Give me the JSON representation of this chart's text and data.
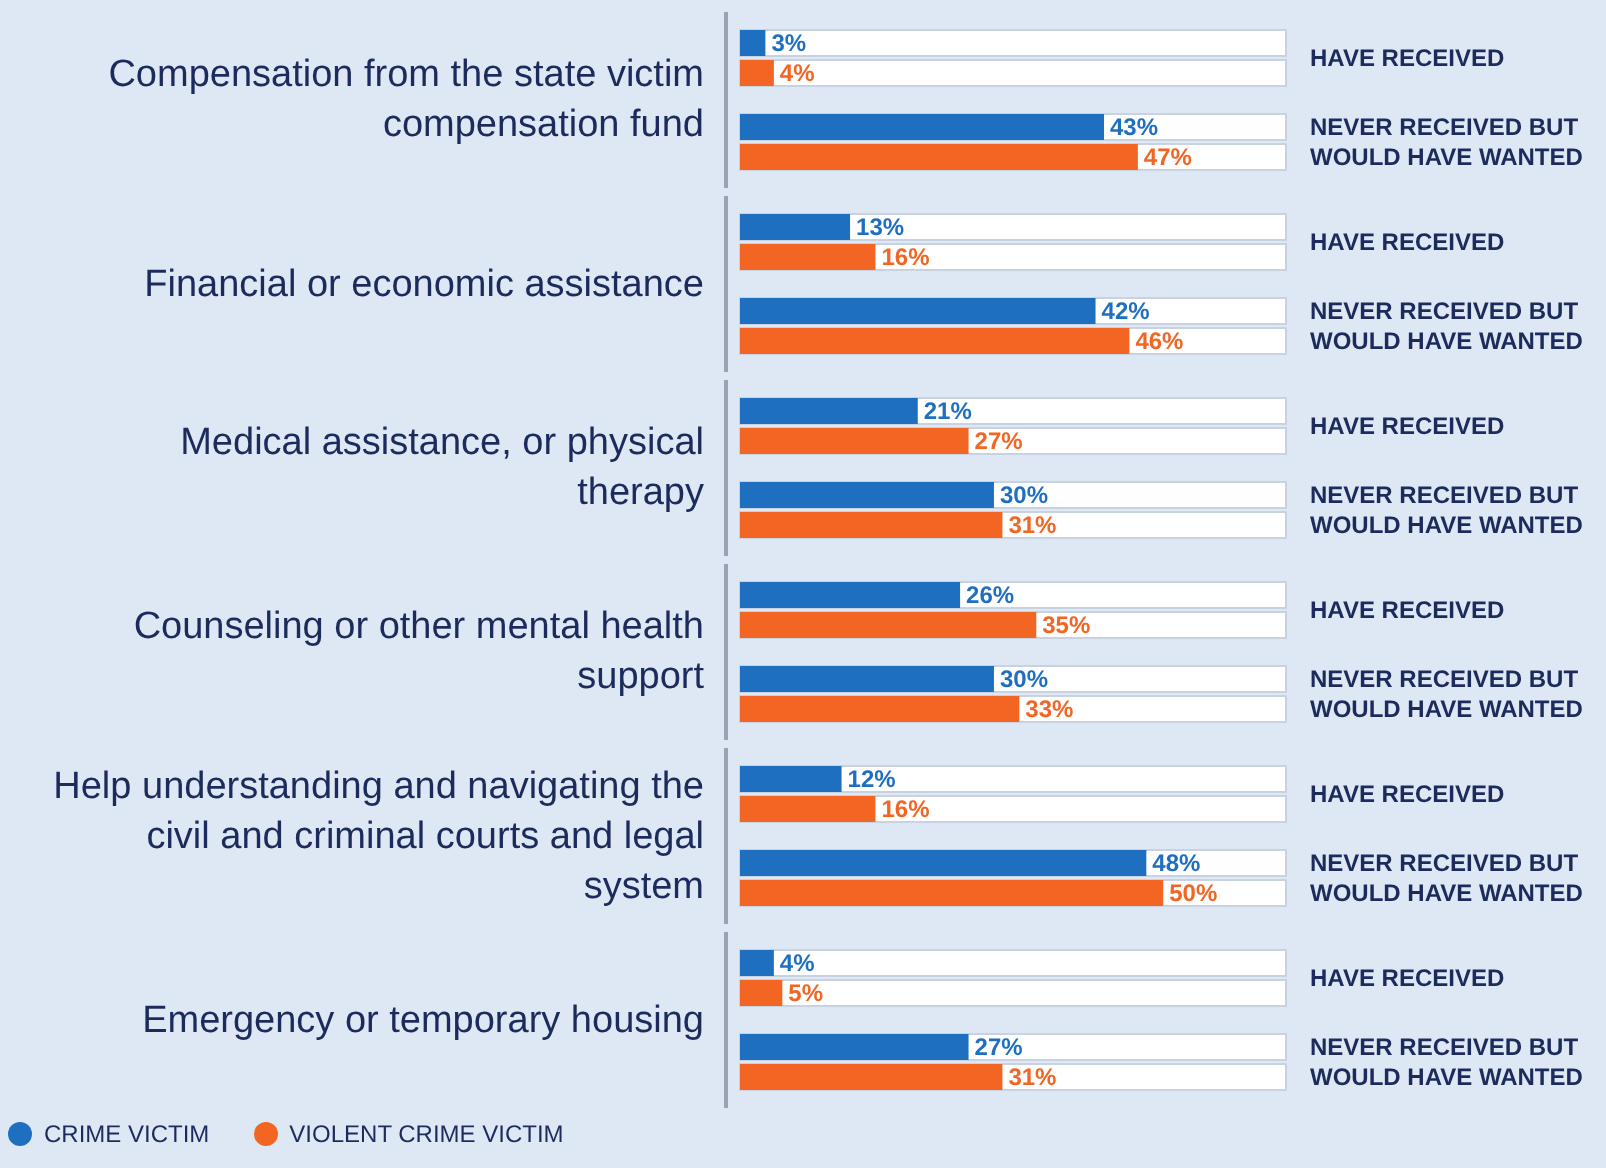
{
  "chart_data": [
    {
      "type": "bar",
      "orientation": "horizontal",
      "title": "Compensation from the state victim compensation fund",
      "categories": [
        "HAVE RECEIVED",
        "NEVER RECEIVED BUT WOULD HAVE WANTED"
      ],
      "series": [
        {
          "color": "#1f6fc0",
          "values": [
            3,
            43
          ],
          "value_labels": [
            "3%",
            "43%"
          ]
        },
        {
          "color": "#f26522",
          "values": [
            4,
            47
          ],
          "value_labels": [
            "4%",
            "47%"
          ]
        }
      ]
    },
    {
      "type": "bar",
      "orientation": "horizontal",
      "title": "Financial or economic assistance",
      "categories": [
        "HAVE RECEIVED",
        "NEVER RECEIVED BUT WOULD HAVE WANTED"
      ],
      "series": [
        {
          "color": "#1f6fc0",
          "values": [
            13,
            42
          ],
          "value_labels": [
            "13%",
            "42%"
          ]
        },
        {
          "color": "#f26522",
          "values": [
            16,
            46
          ],
          "value_labels": [
            "16%",
            "46%"
          ]
        }
      ]
    },
    {
      "type": "bar",
      "orientation": "horizontal",
      "title": "Medical assistance, or physical therapy",
      "categories": [
        "HAVE RECEIVED",
        "NEVER RECEIVED BUT WOULD HAVE WANTED"
      ],
      "series": [
        {
          "color": "#1f6fc0",
          "values": [
            21,
            30
          ],
          "value_labels": [
            "21%",
            "30%"
          ]
        },
        {
          "color": "#f26522",
          "values": [
            27,
            31
          ],
          "value_labels": [
            "27%",
            "31%"
          ]
        }
      ]
    },
    {
      "type": "bar",
      "orientation": "horizontal",
      "title": "Counseling or other mental health support",
      "categories": [
        "HAVE RECEIVED",
        "NEVER RECEIVED BUT WOULD HAVE WANTED"
      ],
      "series": [
        {
          "color": "#1f6fc0",
          "values": [
            26,
            30
          ],
          "value_labels": [
            "26%",
            "30%"
          ]
        },
        {
          "color": "#f26522",
          "values": [
            35,
            33
          ],
          "value_labels": [
            "35%",
            "33%"
          ]
        }
      ]
    },
    {
      "type": "bar",
      "orientation": "horizontal",
      "title": "Help understanding and navigating the civil and criminal courts and legal system",
      "categories": [
        "HAVE RECEIVED",
        "NEVER RECEIVED BUT WOULD HAVE WANTED"
      ],
      "series": [
        {
          "color": "#1f6fc0",
          "values": [
            12,
            48
          ],
          "value_labels": [
            "12%",
            "48%"
          ]
        },
        {
          "color": "#f26522",
          "values": [
            16,
            50
          ],
          "value_labels": [
            "16%",
            "50%"
          ]
        }
      ]
    },
    {
      "type": "bar",
      "orientation": "horizontal",
      "title": "Emergency or temporary housing",
      "categories": [
        "HAVE RECEIVED",
        "NEVER RECEIVED BUT WOULD HAVE WANTED"
      ],
      "legend": "bottom left",
      "series": [
        {
          "name": "CRIME VICTIM",
          "color": "#1f6fc0",
          "values": [
            4,
            27
          ],
          "value_labels": [
            "4%",
            "27%"
          ]
        },
        {
          "name": "VIOLENT CRIME VICTIM",
          "color": "#f26522",
          "values": [
            5,
            31
          ],
          "value_labels": [
            "5%",
            "31%"
          ]
        }
      ]
    }
  ]
}
